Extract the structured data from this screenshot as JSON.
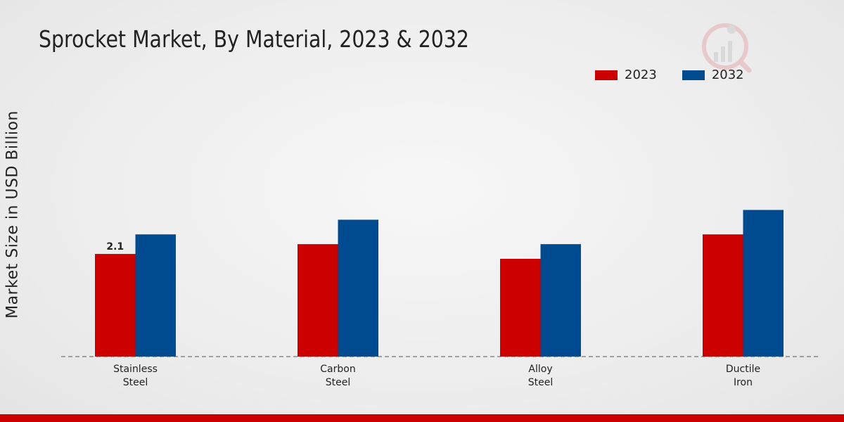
{
  "chart_data": {
    "type": "bar",
    "title": "Sprocket Market, By Material, 2023 & 2032",
    "xlabel": "",
    "ylabel": "Market Size in USD Billion",
    "ylim": [
      0,
      5
    ],
    "categories": [
      [
        "Stainless",
        "Steel"
      ],
      [
        "Carbon",
        "Steel"
      ],
      [
        "Alloy",
        "Steel"
      ],
      [
        "Ductile",
        "Iron"
      ]
    ],
    "series": [
      {
        "name": "2023",
        "color": "#cc0000",
        "values": [
          2.1,
          2.3,
          2.0,
          2.5
        ]
      },
      {
        "name": "2032",
        "color": "#004a8f",
        "values": [
          2.5,
          2.8,
          2.3,
          3.0
        ]
      }
    ],
    "data_labels": [
      {
        "series": 0,
        "index": 0,
        "text": "2.1"
      }
    ],
    "legend_position": "top-right",
    "grid": false
  }
}
